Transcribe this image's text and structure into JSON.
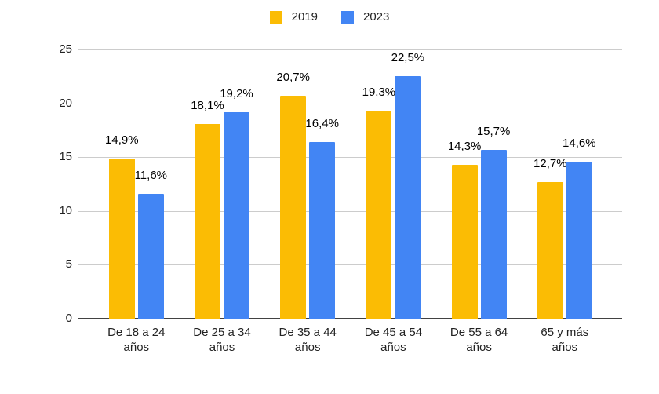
{
  "page": {
    "background": "#ffffff"
  },
  "chart_data": {
    "type": "bar",
    "title": "",
    "xlabel": "",
    "ylabel": "",
    "categories": [
      "De 18 a 24 años",
      "De 25 a 34 años",
      "De 35 a 44 años",
      "De 45 a 54 años",
      "De 55 a 64 años",
      "65 y más años"
    ],
    "category_lines": [
      [
        "De 18 a 24",
        "años"
      ],
      [
        "De 25 a 34",
        "años"
      ],
      [
        "De 35 a 44",
        "años"
      ],
      [
        "De 45 a 54",
        "años"
      ],
      [
        "De 55 a 64",
        "años"
      ],
      [
        "65 y más",
        "años"
      ]
    ],
    "series": [
      {
        "name": "2019",
        "color": "#FBBC04",
        "values": [
          14.9,
          18.1,
          20.7,
          19.3,
          14.3,
          12.7
        ],
        "labels": [
          "14,9%",
          "18,1%",
          "20,7%",
          "19,3%",
          "14,3%",
          "12,7%"
        ]
      },
      {
        "name": "2023",
        "color": "#4285F4",
        "values": [
          11.6,
          19.2,
          16.4,
          22.5,
          15.7,
          14.6
        ],
        "labels": [
          "11,6%",
          "19,2%",
          "16,4%",
          "22,5%",
          "15,7%",
          "14,6%"
        ]
      }
    ],
    "y_ticks": [
      0,
      5,
      10,
      15,
      20,
      25
    ],
    "y_tick_labels": [
      "0",
      "5",
      "10",
      "15",
      "20",
      "25"
    ],
    "ylim": [
      0,
      25
    ],
    "grid": true,
    "legend_position": "top",
    "gridline_color": "#cccccc",
    "baseline_color": "#424242"
  }
}
